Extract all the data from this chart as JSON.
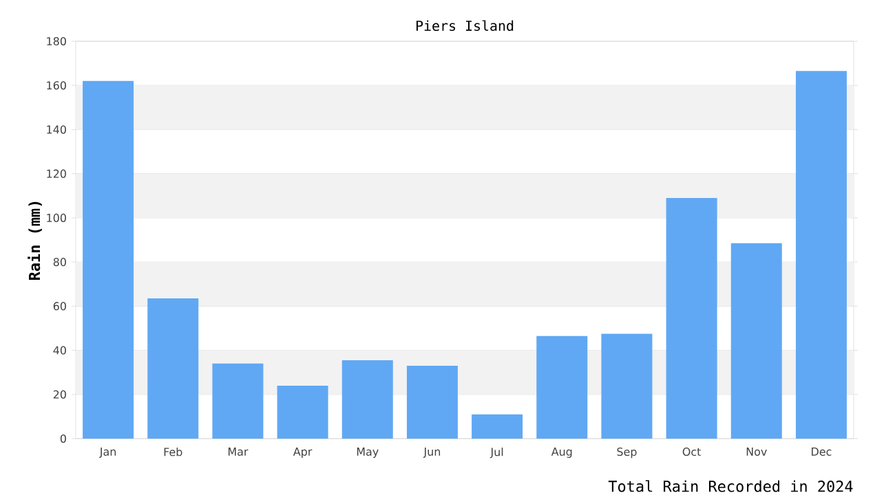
{
  "chart_data": {
    "type": "bar",
    "title": "Piers Island",
    "ylabel": "Rain (mm)",
    "categories": [
      "Jan",
      "Feb",
      "Mar",
      "Apr",
      "May",
      "Jun",
      "Jul",
      "Aug",
      "Sep",
      "Oct",
      "Nov",
      "Dec"
    ],
    "values": [
      162,
      63.5,
      34,
      24,
      35.5,
      33,
      11,
      46.5,
      47.5,
      109,
      88.5,
      166.5
    ],
    "color": "#60a8f4",
    "ylim": [
      0,
      180
    ],
    "yticks": [
      0,
      20,
      40,
      60,
      80,
      100,
      120,
      140,
      160,
      180
    ],
    "grid": "y",
    "annotations": [
      "Total Rain Recorded in 2024"
    ]
  }
}
